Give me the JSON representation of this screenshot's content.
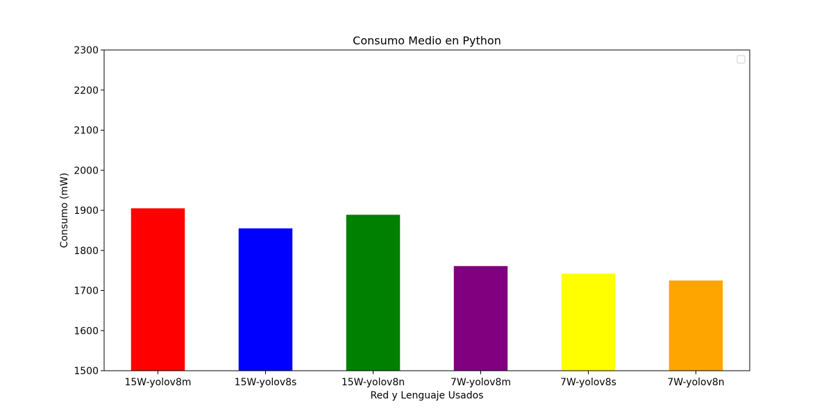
{
  "chart_data": {
    "type": "bar",
    "title": "Consumo Medio en Python",
    "xlabel": "Red y Lenguaje Usados",
    "ylabel": "Consumo (mW)",
    "categories": [
      "15W-yolov8m",
      "15W-yolov8s",
      "15W-yolov8n",
      "7W-yolov8m",
      "7W-yolov8s",
      "7W-yolov8n"
    ],
    "values": [
      1905,
      1855,
      1889,
      1761,
      1742,
      1725
    ],
    "colors": [
      "#ff0000",
      "#0000ff",
      "#008000",
      "#800080",
      "#ffff00",
      "#ffa500"
    ],
    "ylim": [
      1500,
      2300
    ],
    "yticks": [
      1500,
      1600,
      1700,
      1800,
      1900,
      2000,
      2100,
      2200,
      2300
    ],
    "grid": false,
    "legend": {
      "placement": "top-right",
      "entries": []
    }
  }
}
